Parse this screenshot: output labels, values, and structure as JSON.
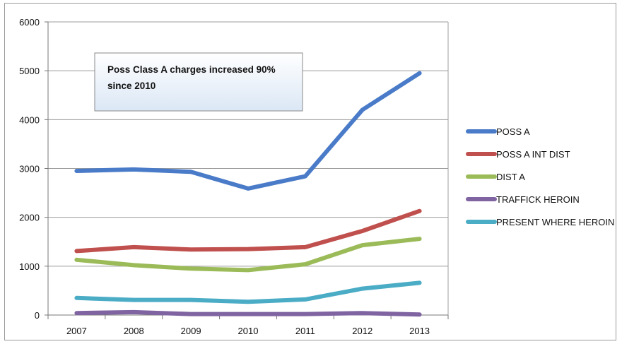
{
  "chart_data": {
    "type": "line",
    "title": "",
    "xlabel": "",
    "ylabel": "",
    "categories": [
      "2007",
      "2008",
      "2009",
      "2010",
      "2011",
      "2012",
      "2013"
    ],
    "ylim": [
      0,
      6000
    ],
    "yticks": [
      "0",
      "1000",
      "2000",
      "3000",
      "4000",
      "5000",
      "6000"
    ],
    "grid": true,
    "legend_position": "right",
    "series": [
      {
        "name": "POSS A",
        "color": "#4a7bc8",
        "values": [
          2950,
          2980,
          2930,
          2590,
          2840,
          4200,
          4950
        ]
      },
      {
        "name": "POSS A INT DIST",
        "color": "#c0504d",
        "values": [
          1310,
          1390,
          1340,
          1350,
          1390,
          1720,
          2130
        ]
      },
      {
        "name": "DIST A",
        "color": "#9bbb59",
        "values": [
          1130,
          1020,
          950,
          920,
          1040,
          1430,
          1560
        ]
      },
      {
        "name": "TRAFFICK HEROIN",
        "color": "#8064a2",
        "values": [
          40,
          60,
          20,
          20,
          20,
          40,
          10
        ]
      },
      {
        "name": "PRESENT WHERE HEROIN",
        "color": "#4bacc6",
        "values": [
          350,
          310,
          310,
          270,
          320,
          540,
          660
        ]
      }
    ],
    "annotation": {
      "lines": [
        "Poss  Class A charges increased 90%",
        "since 2010"
      ]
    }
  }
}
